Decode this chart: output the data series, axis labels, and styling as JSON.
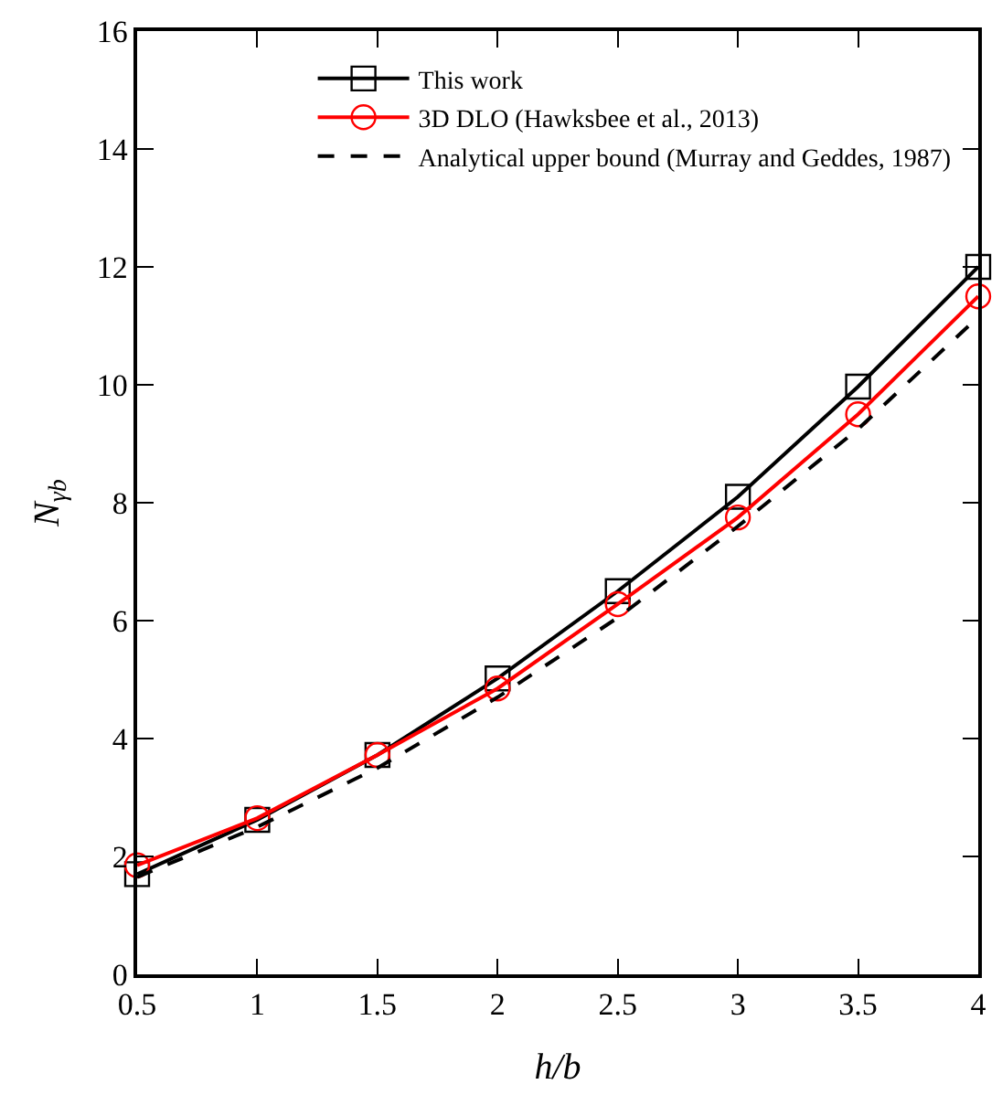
{
  "chart_data": {
    "type": "line",
    "xlabel": "h/b",
    "ylabel": "N$_{γb}$",
    "x": [
      0.5,
      1,
      1.5,
      2,
      2.5,
      3,
      3.5,
      4
    ],
    "series": [
      {
        "name": "This work",
        "color": "#000000",
        "marker": "square",
        "line_style": "solid",
        "values": [
          1.7,
          2.62,
          3.72,
          5.02,
          6.5,
          8.1,
          9.97,
          12.0
        ]
      },
      {
        "name": "3D DLO (Hawksbee et al., 2013)",
        "color": "#ff0000",
        "marker": "circle",
        "line_style": "solid",
        "values": [
          1.85,
          2.65,
          3.72,
          4.85,
          6.28,
          7.75,
          9.5,
          11.5
        ]
      },
      {
        "name": "Analytical upper bound (Murray and Geddes, 1987)",
        "color": "#000000",
        "marker": "none",
        "line_style": "dashed",
        "values": [
          1.65,
          2.5,
          3.5,
          4.7,
          6.05,
          7.6,
          9.25,
          11.15
        ]
      }
    ],
    "xlim": [
      0.5,
      4
    ],
    "xticks": [
      0.5,
      1,
      1.5,
      2,
      2.5,
      3,
      3.5,
      4
    ],
    "ylim": [
      0,
      16
    ],
    "yticks": [
      0,
      2,
      4,
      6,
      8,
      10,
      12,
      14,
      16
    ],
    "legend": "top right"
  }
}
